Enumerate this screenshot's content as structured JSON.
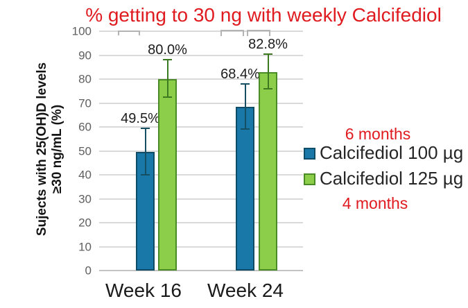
{
  "title": "% getting to 30 ng with weekly Calcifediol",
  "annotations": {
    "top_note": "6 months",
    "bottom_note": "4 months"
  },
  "colors": {
    "title_red": "#e01b20",
    "annotation_red": "#e01b20",
    "grid": "#dadada",
    "axis_line": "#c3c3c3",
    "tick_label": "#5f5f5f",
    "bracket": "#b3b3b3",
    "blue_fill": "#1a78a9",
    "blue_border": "#0f4c68",
    "green_fill": "#8ccd49",
    "green_border": "#4b8b27"
  },
  "legend": {
    "items": [
      {
        "label": "Calcifediol 100 µg",
        "fill": "#1a78a9",
        "border": "#0f4c68"
      },
      {
        "label": "Calcifediol 125 µg",
        "fill": "#8ccd49",
        "border": "#4b8b27"
      }
    ]
  },
  "chart_data": {
    "type": "bar",
    "title": "% getting to 30 ng with weekly Calcifediol",
    "categories": [
      "Week 16",
      "Week 24"
    ],
    "series": [
      {
        "name": "Calcifediol 100 µg",
        "fill": "#1a78a9",
        "border": "#0f4c68",
        "error_color": "#144f63",
        "values": [
          49.5,
          68.4
        ],
        "labels": [
          "49.5%",
          "68.4%"
        ],
        "error_plus": [
          10.0,
          9.6
        ],
        "error_minus": [
          9.5,
          9.4
        ]
      },
      {
        "name": "Calcifediol 125 µg",
        "fill": "#8ccd49",
        "border": "#4b8b27",
        "error_color": "#3c7a20",
        "values": [
          80.0,
          82.8
        ],
        "labels": [
          "80.0%",
          "82.8%"
        ],
        "error_plus": [
          8.0,
          7.7
        ],
        "error_minus": [
          7.5,
          6.8
        ]
      }
    ],
    "ylabel_lines": [
      "Sujects with 25(OH)D levels",
      "≥30 ng/mL (%)"
    ],
    "ylim": [
      0,
      100
    ],
    "ytick_step": 10,
    "grid": true,
    "error_bars": true,
    "legend_position": "right"
  }
}
